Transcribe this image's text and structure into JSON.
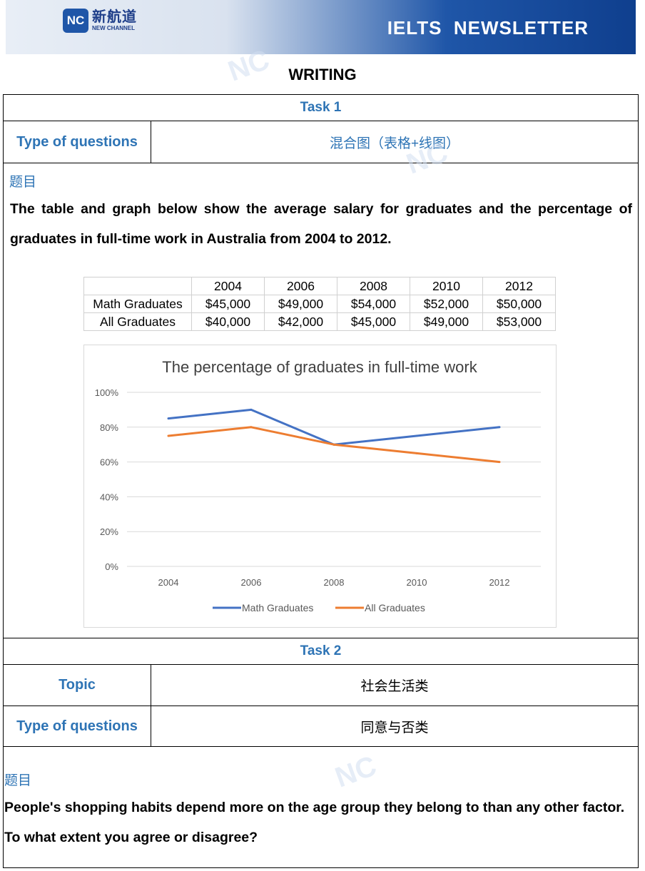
{
  "header": {
    "logo_badge": "NC",
    "logo_cn": "新航道",
    "logo_en": "NEW CHANNEL",
    "newsletter": "IELTS  NEWSLETTER"
  },
  "section_title": "WRITING",
  "task1": {
    "title": "Task 1",
    "type_label": "Type of questions",
    "type_value": "混合图（表格+线图）",
    "topic_marker": "题目",
    "prompt": "The table and graph below show the average salary for graduates and the percentage of graduates in full-time work in Australia from 2004 to 2012."
  },
  "salary_table": {
    "years": [
      "2004",
      "2006",
      "2008",
      "2010",
      "2012"
    ],
    "rows": [
      {
        "label": "Math Graduates",
        "values": [
          "$45,000",
          "$49,000",
          "$54,000",
          "$52,000",
          "$50,000"
        ]
      },
      {
        "label": "All Graduates",
        "values": [
          "$40,000",
          "$42,000",
          "$45,000",
          "$49,000",
          "$53,000"
        ]
      }
    ]
  },
  "chart_data": {
    "type": "line",
    "title": "The percentage of graduates in full-time work",
    "x": [
      "2004",
      "2006",
      "2008",
      "2010",
      "2012"
    ],
    "y_ticks": [
      "100%",
      "80%",
      "60%",
      "40%",
      "20%",
      "0%"
    ],
    "ylim": [
      0,
      100
    ],
    "grid": true,
    "legend": "bottom",
    "series": [
      {
        "name": "Math Graduates",
        "color": "#4472c4",
        "values": [
          85,
          90,
          70,
          75,
          80
        ]
      },
      {
        "name": "All Graduates",
        "color": "#ed7d31",
        "values": [
          75,
          80,
          70,
          65,
          60
        ]
      }
    ]
  },
  "task2": {
    "title": "Task 2",
    "topic_label": "Topic",
    "topic_value": "社会生活类",
    "type_label": "Type of questions",
    "type_value": "同意与否类",
    "topic_marker": "题目",
    "prompt": "People's shopping habits depend more on the age group they belong to than any other factor. To what extent you agree or disagree?"
  },
  "colors": {
    "accent": "#2e74b5",
    "header_dark": "#1f56a8"
  }
}
